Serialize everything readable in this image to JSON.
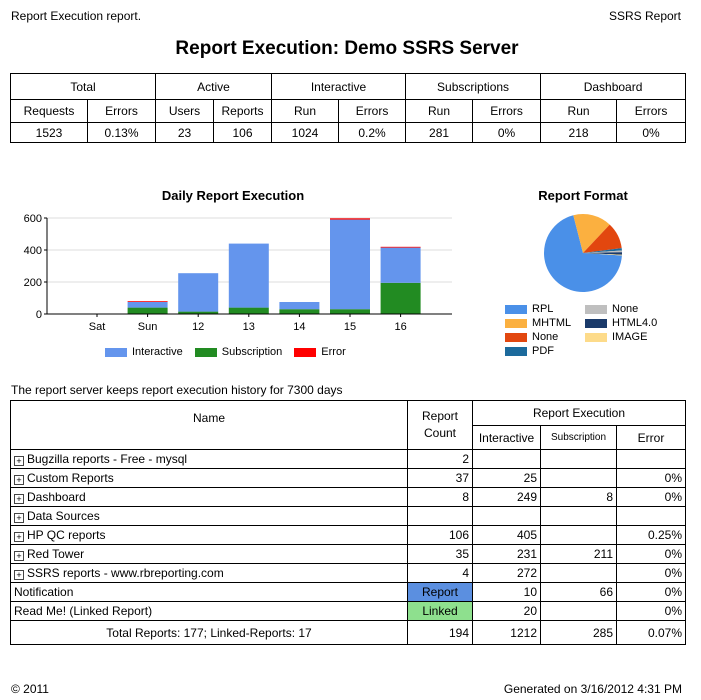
{
  "header": {
    "left": "Report Execution report.",
    "right": "SSRS Report",
    "title": "Report Execution: Demo SSRS Server"
  },
  "summary": {
    "groups": [
      "Total",
      "Active",
      "Interactive",
      "Subscriptions",
      "Dashboard"
    ],
    "columns": [
      "Requests",
      "Errors",
      "Users",
      "Reports",
      "Run",
      "Errors",
      "Run",
      "Errors",
      "Run",
      "Errors"
    ],
    "values": [
      "1523",
      "0.13%",
      "23",
      "106",
      "1024",
      "0.2%",
      "281",
      "0%",
      "218",
      "0%"
    ]
  },
  "chart_data": [
    {
      "type": "bar",
      "stacked": true,
      "title": "Daily Report Execution",
      "categories": [
        "Sat",
        "Sun",
        "12",
        "13",
        "14",
        "15",
        "16"
      ],
      "ylim": [
        0,
        600
      ],
      "yticks": [
        0,
        200,
        400,
        600
      ],
      "series": [
        {
          "name": "Interactive",
          "color": "#6495ED",
          "values": [
            0,
            35,
            240,
            400,
            45,
            560,
            220
          ]
        },
        {
          "name": "Subscription",
          "color": "#228B22",
          "values": [
            0,
            40,
            15,
            40,
            30,
            30,
            195
          ]
        },
        {
          "name": "Error",
          "color": "#FF0000",
          "values": [
            0,
            5,
            0,
            0,
            0,
            8,
            5
          ]
        }
      ],
      "legend": "bottom"
    },
    {
      "type": "pie",
      "title": "Report Format",
      "legend": "bottom",
      "slices": [
        {
          "name": "RPL",
          "value": 70,
          "color": "#4A90E8"
        },
        {
          "name": "MHTML",
          "value": 16,
          "color": "#FBB040"
        },
        {
          "name": "None",
          "value": 11,
          "color": "#E2470F"
        },
        {
          "name": "PDF",
          "value": 1,
          "color": "#1C6A9C"
        },
        {
          "name": "None",
          "value": 0.7,
          "color": "#BFBFBF"
        },
        {
          "name": "HTML4.0",
          "value": 1,
          "color": "#1A3A6A"
        },
        {
          "name": "IMAGE",
          "value": 0.3,
          "color": "#FDDB8A"
        }
      ]
    }
  ],
  "note": "The report server keeps report execution history for 7300 days",
  "main": {
    "headers": {
      "name": "Name",
      "count": "Report Count",
      "exec": "Report Execution",
      "interactive": "Interactive",
      "subscription": "Subscription",
      "error": "Error"
    },
    "rows": [
      {
        "name": "Bugzilla reports - Free - mysql",
        "expand": true,
        "count": "2",
        "interactive": "",
        "subscription": "",
        "error": ""
      },
      {
        "name": "Custom Reports",
        "expand": true,
        "count": "37",
        "interactive": "25",
        "subscription": "",
        "error": "0%"
      },
      {
        "name": "Dashboard",
        "expand": true,
        "count": "8",
        "interactive": "249",
        "subscription": "8",
        "error": "0%"
      },
      {
        "name": "Data Sources",
        "expand": true,
        "count": "",
        "interactive": "",
        "subscription": "",
        "error": ""
      },
      {
        "name": "HP QC reports",
        "expand": true,
        "count": "106",
        "interactive": "405",
        "subscription": "",
        "error": "0.25%"
      },
      {
        "name": "Red Tower",
        "expand": true,
        "count": "35",
        "interactive": "231",
        "subscription": "211",
        "error": "0%"
      },
      {
        "name": "SSRS reports - www.rbreporting.com",
        "expand": true,
        "count": "4",
        "interactive": "272",
        "subscription": "",
        "error": "0%"
      },
      {
        "name": "Notification",
        "expand": false,
        "count": "Report",
        "countColor": "#5B8FE0",
        "interactive": "10",
        "subscription": "66",
        "error": "0%"
      },
      {
        "name": "Read Me! (Linked Report)",
        "expand": false,
        "count": "Linked",
        "countColor": "#8EE08E",
        "interactive": "20",
        "subscription": "",
        "error": "0%"
      }
    ],
    "total": {
      "name": "Total Reports: 177; Linked-Reports: 17",
      "count": "194",
      "interactive": "1212",
      "subscription": "285",
      "error": "0.07%"
    }
  },
  "footer": {
    "left": "© 2011",
    "right": "Generated on 3/16/2012 4:31 PM"
  }
}
